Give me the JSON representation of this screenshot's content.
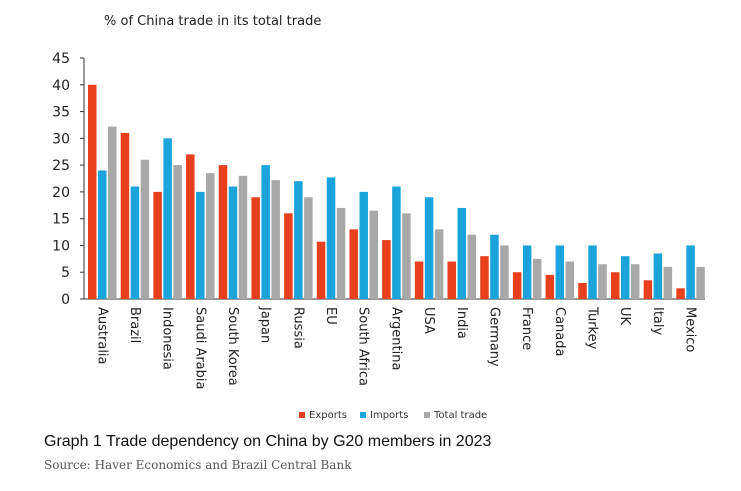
{
  "caption": {
    "title": "Graph 1 Trade dependency on China by G20 members in 2023",
    "source": "Source: Haver Economics and Brazil Central Bank"
  },
  "chart_data": {
    "type": "bar",
    "ylabel": "% of China trade in its total trade",
    "ylim": [
      0,
      45
    ],
    "yticks": [
      "0",
      "5",
      "10",
      "15",
      "20",
      "25",
      "30",
      "35",
      "40",
      "45"
    ],
    "categories": [
      "Australia",
      "Brazil",
      "Indonesia",
      "Saudi Arabia",
      "South Korea",
      "Japan",
      "Russia",
      "EU",
      "South Africa",
      "Argentina",
      "USA",
      "India",
      "Germany",
      "France",
      "Canada",
      "Turkey",
      "UK",
      "Italy",
      "Mexico"
    ],
    "series": [
      {
        "name": "Exports",
        "color": "#e8401c",
        "values": [
          40,
          31,
          20,
          27,
          25,
          19,
          16,
          10.7,
          13,
          11,
          7,
          7,
          8,
          5,
          4.5,
          3,
          5,
          3.5,
          2
        ]
      },
      {
        "name": "Imports",
        "color": "#1ba3dc",
        "values": [
          24,
          21,
          30,
          20,
          21,
          25,
          22,
          22.7,
          20,
          21,
          19,
          17,
          12,
          10,
          10,
          10,
          8,
          8.5,
          10
        ]
      },
      {
        "name": "Total trade",
        "color": "#a8a8a8",
        "values": [
          32.2,
          26,
          25,
          23.5,
          23,
          22.2,
          19,
          17,
          16.5,
          16,
          13,
          12,
          10,
          7.5,
          7,
          6.5,
          6.5,
          6,
          6
        ]
      }
    ],
    "legend_position": "bottom",
    "grid": false
  }
}
